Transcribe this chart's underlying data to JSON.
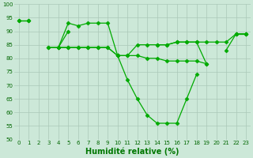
{
  "x": [
    0,
    1,
    2,
    3,
    4,
    5,
    6,
    7,
    8,
    9,
    10,
    11,
    12,
    13,
    14,
    15,
    16,
    17,
    18,
    19,
    20,
    21,
    22,
    23
  ],
  "line1": [
    94,
    94,
    null,
    null,
    84,
    93,
    92,
    93,
    93,
    93,
    81,
    72,
    65,
    59,
    56,
    56,
    56,
    65,
    74,
    null,
    null,
    null,
    89,
    89
  ],
  "line2": [
    94,
    94,
    null,
    null,
    84,
    90,
    null,
    null,
    null,
    null,
    81,
    null,
    null,
    null,
    85,
    85,
    86,
    86,
    86,
    78,
    null,
    83,
    89,
    89
  ],
  "line3": [
    null,
    null,
    null,
    84,
    84,
    84,
    84,
    84,
    84,
    84,
    81,
    81,
    81,
    80,
    80,
    79,
    79,
    79,
    79,
    78,
    null,
    null,
    null,
    null
  ],
  "line4": [
    null,
    null,
    null,
    84,
    84,
    84,
    84,
    84,
    84,
    84,
    81,
    81,
    85,
    85,
    85,
    85,
    86,
    86,
    86,
    86,
    86,
    86,
    89,
    89
  ],
  "background_color": "#cce8d8",
  "grid_color": "#aac8b8",
  "line_color": "#00aa00",
  "marker": "D",
  "markersize": 2.5,
  "xlabel": "Humidité relative (%)",
  "xlabel_color": "#007700",
  "xlabel_fontsize": 7,
  "ylim": [
    50,
    100
  ],
  "xlim_min": -0.5,
  "xlim_max": 23.5,
  "yticks": [
    50,
    55,
    60,
    65,
    70,
    75,
    80,
    85,
    90,
    95,
    100
  ],
  "xticks": [
    0,
    1,
    2,
    3,
    4,
    5,
    6,
    7,
    8,
    9,
    10,
    11,
    12,
    13,
    14,
    15,
    16,
    17,
    18,
    19,
    20,
    21,
    22,
    23
  ],
  "tick_fontsize": 5,
  "tick_color": "#006600"
}
